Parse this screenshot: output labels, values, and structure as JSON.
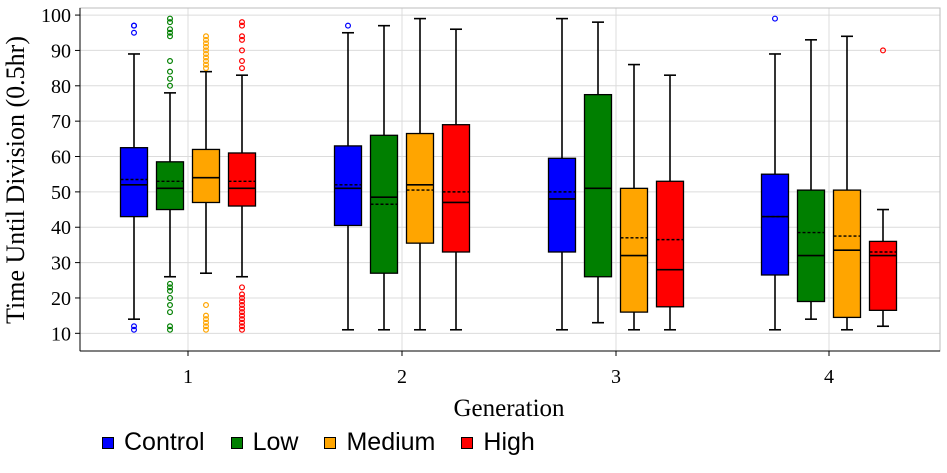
{
  "chart_data": {
    "type": "boxplot",
    "title": "",
    "xlabel": "Generation",
    "ylabel": "Time Until Division (0.5hr)",
    "ylim": [
      5,
      102
    ],
    "yticks": [
      10,
      20,
      30,
      40,
      50,
      60,
      70,
      80,
      90,
      100
    ],
    "categories": [
      "1",
      "2",
      "3",
      "4"
    ],
    "grid": true,
    "legend_position": "bottom-left",
    "series": [
      {
        "name": "Control",
        "color": "#0000ff",
        "boxes": [
          {
            "whisker_low": 14,
            "q1": 43,
            "median": 52,
            "mean": 53.5,
            "q3": 62.5,
            "whisker_high": 89,
            "outliers": [
              11,
              12,
              95,
              97,
              97
            ]
          },
          {
            "whisker_low": 11,
            "q1": 40.5,
            "median": 51,
            "mean": 52,
            "q3": 63,
            "whisker_high": 95,
            "outliers": [
              97
            ]
          },
          {
            "whisker_low": 11,
            "q1": 33,
            "median": 48,
            "mean": 50,
            "q3": 59.5,
            "whisker_high": 99,
            "outliers": []
          },
          {
            "whisker_low": 11,
            "q1": 26.5,
            "median": 43,
            "mean": 43,
            "q3": 55,
            "whisker_high": 89,
            "outliers": [
              99
            ]
          }
        ]
      },
      {
        "name": "Low",
        "color": "#007f00",
        "boxes": [
          {
            "whisker_low": 26,
            "q1": 45,
            "median": 51,
            "mean": 53,
            "q3": 58.5,
            "whisker_high": 78,
            "outliers": [
              11,
              12,
              16,
              18,
              20,
              22,
              23,
              24,
              80,
              82,
              84,
              87,
              94,
              95,
              96,
              98,
              99
            ]
          },
          {
            "whisker_low": 11,
            "q1": 27,
            "median": 48.5,
            "mean": 46.5,
            "q3": 66,
            "whisker_high": 97,
            "outliers": []
          },
          {
            "whisker_low": 13,
            "q1": 26,
            "median": 51,
            "mean": 51,
            "q3": 77.5,
            "whisker_high": 98,
            "outliers": []
          },
          {
            "whisker_low": 14,
            "q1": 19,
            "median": 32,
            "mean": 38.5,
            "q3": 50.5,
            "whisker_high": 93,
            "outliers": []
          }
        ]
      },
      {
        "name": "Medium",
        "color": "#ffa500",
        "boxes": [
          {
            "whisker_low": 27,
            "q1": 47,
            "median": 54,
            "mean": 54,
            "q3": 62,
            "whisker_high": 84,
            "outliers": [
              11,
              12,
              13,
              14,
              15,
              18,
              85,
              86,
              87,
              88,
              89,
              90,
              91,
              92,
              93,
              94
            ]
          },
          {
            "whisker_low": 11,
            "q1": 35.5,
            "median": 52,
            "mean": 50.5,
            "q3": 66.5,
            "whisker_high": 99,
            "outliers": []
          },
          {
            "whisker_low": 11,
            "q1": 16,
            "median": 32,
            "mean": 37,
            "q3": 51,
            "whisker_high": 86,
            "outliers": []
          },
          {
            "whisker_low": 11,
            "q1": 14.5,
            "median": 33.5,
            "mean": 37.5,
            "q3": 50.5,
            "whisker_high": 94,
            "outliers": []
          }
        ]
      },
      {
        "name": "High",
        "color": "#ff0000",
        "boxes": [
          {
            "whisker_low": 26,
            "q1": 46,
            "median": 51,
            "mean": 53,
            "q3": 61,
            "whisker_high": 83,
            "outliers": [
              11,
              12,
              13,
              14,
              15,
              16,
              17,
              18,
              19,
              20,
              21,
              23,
              85,
              87,
              90,
              93,
              94,
              97,
              98
            ]
          },
          {
            "whisker_low": 11,
            "q1": 33,
            "median": 47,
            "mean": 50,
            "q3": 69,
            "whisker_high": 96,
            "outliers": []
          },
          {
            "whisker_low": 11,
            "q1": 17.5,
            "median": 28,
            "mean": 36.5,
            "q3": 53,
            "whisker_high": 83,
            "outliers": []
          },
          {
            "whisker_low": 12,
            "q1": 16.5,
            "median": 32,
            "mean": 33,
            "q3": 36,
            "whisker_high": 45,
            "outliers": [
              90
            ]
          }
        ]
      }
    ]
  },
  "legend": {
    "items": [
      {
        "label": "Control",
        "color": "#0000ff"
      },
      {
        "label": "Low",
        "color": "#007f00"
      },
      {
        "label": "Medium",
        "color": "#ffa500"
      },
      {
        "label": "High",
        "color": "#ff0000"
      }
    ]
  }
}
